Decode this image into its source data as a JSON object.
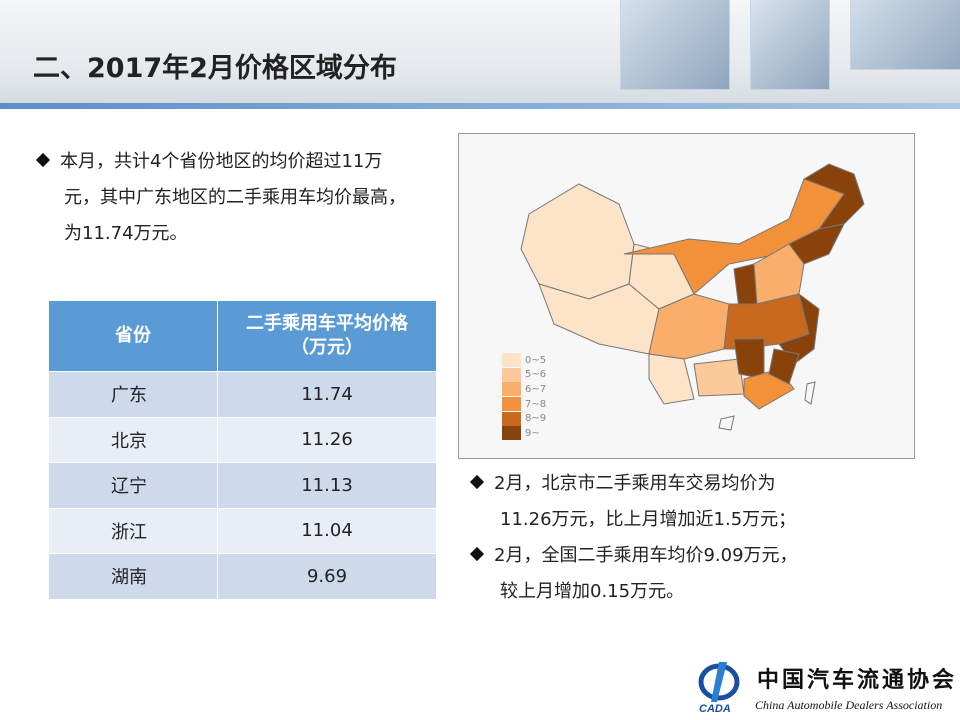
{
  "header": {
    "title": "二、2017年2月价格区域分布"
  },
  "summary": {
    "lines": [
      "本月，共计4个省份地区的均价超过11万",
      "元，其中广东地区的二手乘用车均价最高，",
      "为11.74万元。"
    ]
  },
  "table": {
    "headers": [
      "省份",
      "二手乘用车平均价格\n（万元）"
    ],
    "header_line1": "二手乘用车平均价格",
    "header_line2": "（万元）",
    "rows": [
      [
        "广东",
        "11.74"
      ],
      [
        "北京",
        "11.26"
      ],
      [
        "辽宁",
        "11.13"
      ],
      [
        "浙江",
        "11.04"
      ],
      [
        "湖南",
        "9.69"
      ]
    ]
  },
  "map": {
    "legend": [
      {
        "label": "0~5",
        "color": "#fde3c8"
      },
      {
        "label": "5~6",
        "color": "#fcc99a"
      },
      {
        "label": "6~7",
        "color": "#f9ae6c"
      },
      {
        "label": "7~8",
        "color": "#f2913a"
      },
      {
        "label": "8~9",
        "color": "#c9691d"
      },
      {
        "label": "9~",
        "color": "#8a420b"
      }
    ]
  },
  "notes": {
    "items": [
      {
        "line1": "2月，北京市二手乘用车交易均价为",
        "line2": "11.26万元，比上月增加近1.5万元；"
      },
      {
        "line1": "2月，全国二手乘用车均价9.09万元，",
        "line2": "较上月增加0.15万元。"
      }
    ]
  },
  "logo": {
    "cn": "中国汽车流通协会",
    "en": "China Automobile Dealers Association",
    "abbr": "CADA"
  }
}
